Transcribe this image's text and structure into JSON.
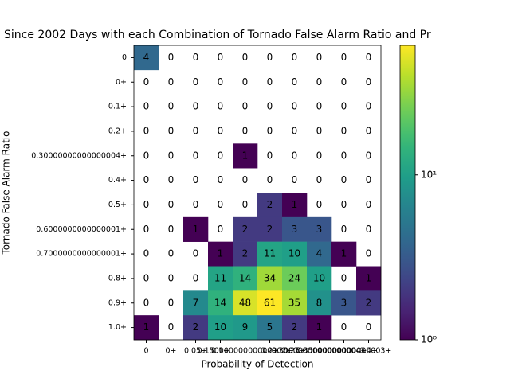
{
  "chart_data": {
    "type": "heatmap",
    "title": "Since 2002 Days with each Combination of Tornado False Alarm Ratio and Pr",
    "x_label": "Probability of Detection",
    "y_label": "Tornado False Alarm Ratio",
    "x_categories": [
      "0",
      "0+",
      "0.05+",
      "0.1+",
      "0.15000000000000002+",
      "0.2+",
      "0.25+",
      "0.30000000000000004+",
      "0.35000000000000003+",
      "0.4+"
    ],
    "y_categories": [
      "0",
      "0+",
      "0.1+",
      "0.2+",
      "0.30000000000000004+",
      "0.4+",
      "0.5+",
      "0.6000000000000001+",
      "0.7000000000000001+",
      "0.8+",
      "0.9+",
      "1.0+"
    ],
    "z": [
      [
        4,
        0,
        0,
        0,
        0,
        0,
        0,
        0,
        0,
        0
      ],
      [
        0,
        0,
        0,
        0,
        0,
        0,
        0,
        0,
        0,
        0
      ],
      [
        0,
        0,
        0,
        0,
        0,
        0,
        0,
        0,
        0,
        0
      ],
      [
        0,
        0,
        0,
        0,
        0,
        0,
        0,
        0,
        0,
        0
      ],
      [
        0,
        0,
        0,
        0,
        1,
        0,
        0,
        0,
        0,
        0
      ],
      [
        0,
        0,
        0,
        0,
        0,
        0,
        0,
        0,
        0,
        0
      ],
      [
        0,
        0,
        0,
        0,
        0,
        2,
        1,
        0,
        0,
        0
      ],
      [
        0,
        0,
        1,
        0,
        2,
        2,
        3,
        3,
        0,
        0
      ],
      [
        0,
        0,
        0,
        1,
        2,
        11,
        10,
        4,
        1,
        0
      ],
      [
        0,
        0,
        0,
        11,
        14,
        34,
        24,
        10,
        0,
        1
      ],
      [
        0,
        0,
        7,
        14,
        48,
        61,
        35,
        8,
        3,
        2
      ],
      [
        1,
        0,
        2,
        10,
        9,
        5,
        2,
        1,
        0,
        0
      ]
    ],
    "colormap": "viridis",
    "log_scale": true,
    "clim": [
      1,
      61
    ],
    "cticks": [
      {
        "value": 1,
        "label": "10⁰"
      },
      {
        "value": 10,
        "label": "10¹"
      }
    ]
  }
}
